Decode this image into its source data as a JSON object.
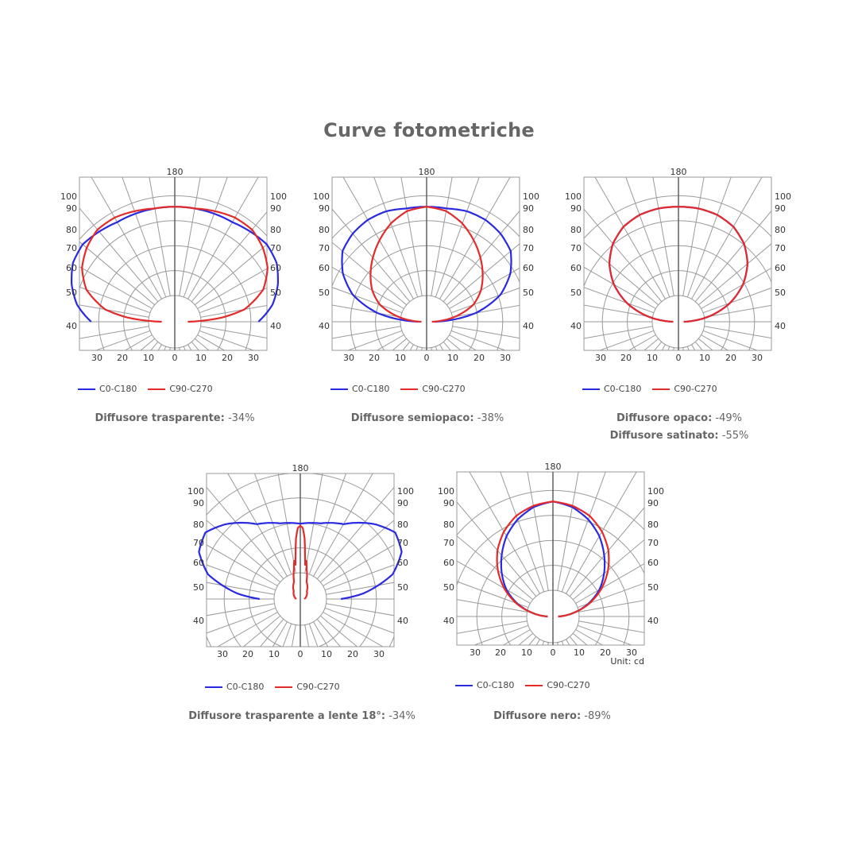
{
  "header": {
    "title": "Curve fotometriche"
  },
  "legend_labels": {
    "c0": "C0-C180",
    "c90": "C90-C270"
  },
  "colors": {
    "c0": "#2a2ae0",
    "c90": "#e32b2b",
    "grid": "#9a9a9a",
    "axis": "#555555"
  },
  "chart_data": [
    {
      "type": "polar",
      "top_label": "180",
      "side_labels": [
        "100",
        "90",
        "80",
        "70",
        "60",
        "50",
        "40"
      ],
      "bottom_labels": [
        "30",
        "20",
        "10",
        "0",
        "10",
        "20",
        "30"
      ],
      "unit": "",
      "series": [
        {
          "key": "c0",
          "name": "C0-C180",
          "profile": [
            [
              0,
              44
            ],
            [
              10,
              44
            ],
            [
              20,
              44
            ],
            [
              30,
              44
            ],
            [
              40,
              45
            ],
            [
              50,
              46
            ],
            [
              60,
              45
            ],
            [
              70,
              42
            ],
            [
              80,
              38
            ],
            [
              90,
              32
            ]
          ]
        },
        {
          "key": "c90",
          "name": "C90-C270",
          "profile": [
            [
              0,
              44
            ],
            [
              10,
              44
            ],
            [
              20,
              45
            ],
            [
              30,
              46
            ],
            [
              40,
              46
            ],
            [
              50,
              44
            ],
            [
              60,
              41
            ],
            [
              70,
              36
            ],
            [
              80,
              27
            ],
            [
              85,
              18
            ],
            [
              90,
              5
            ]
          ]
        }
      ],
      "caption": {
        "label": "Diffusore trasparente:",
        "value": " -34%"
      }
    },
    {
      "type": "polar",
      "top_label": "180",
      "side_labels": [
        "100",
        "90",
        "80",
        "70",
        "60",
        "50",
        "40"
      ],
      "bottom_labels": [
        "30",
        "20",
        "10",
        "0",
        "10",
        "20",
        "30"
      ],
      "unit": "",
      "series": [
        {
          "key": "c0",
          "name": "C0-C180",
          "profile": [
            [
              0,
              44
            ],
            [
              10,
              44
            ],
            [
              20,
              45
            ],
            [
              30,
              45
            ],
            [
              40,
              44
            ],
            [
              50,
              42
            ],
            [
              60,
              37
            ],
            [
              70,
              30
            ],
            [
              80,
              19
            ],
            [
              90,
              3
            ]
          ]
        },
        {
          "key": "c90",
          "name": "C90-C270",
          "profile": [
            [
              0,
              44
            ],
            [
              10,
              43
            ],
            [
              20,
              40
            ],
            [
              30,
              36
            ],
            [
              40,
              32
            ],
            [
              50,
              28
            ],
            [
              60,
              24
            ],
            [
              70,
              19
            ],
            [
              80,
              11
            ],
            [
              90,
              2
            ]
          ]
        }
      ],
      "caption": {
        "label": "Diffusore semiopaco:",
        "value": " -38%"
      }
    },
    {
      "type": "polar",
      "top_label": "180",
      "side_labels": [
        "100",
        "90",
        "80",
        "70",
        "60",
        "50",
        "40"
      ],
      "bottom_labels": [
        "30",
        "20",
        "10",
        "0",
        "10",
        "20",
        "30"
      ],
      "unit": "",
      "series": [
        {
          "key": "c0",
          "name": "C0-C180",
          "profile": [
            [
              0,
              44
            ],
            [
              10,
              44
            ],
            [
              20,
              43.5
            ],
            [
              30,
              42
            ],
            [
              40,
              39
            ],
            [
              50,
              34.5
            ],
            [
              60,
              28.5
            ],
            [
              70,
              21
            ],
            [
              80,
              12
            ],
            [
              90,
              2
            ]
          ]
        },
        {
          "key": "c90",
          "name": "C90-C270",
          "profile": [
            [
              0,
              44
            ],
            [
              10,
              44
            ],
            [
              20,
              43.5
            ],
            [
              30,
              42
            ],
            [
              40,
              39
            ],
            [
              50,
              34.5
            ],
            [
              60,
              28.5
            ],
            [
              70,
              21
            ],
            [
              80,
              12
            ],
            [
              90,
              2
            ]
          ]
        }
      ],
      "caption": {
        "label": "Diffusore opaco:",
        "value": " -49%",
        "label2": "Diffusore satinato:",
        "value2": " -55%"
      }
    },
    {
      "type": "polar",
      "top_label": "180",
      "side_labels": [
        "100",
        "90",
        "80",
        "70",
        "60",
        "50",
        "40"
      ],
      "bottom_labels": [
        "30",
        "20",
        "10",
        "0",
        "10",
        "20",
        "30"
      ],
      "unit": "",
      "series": [
        {
          "key": "c0",
          "name": "C0-C180",
          "profile": [
            [
              0,
              37
            ],
            [
              15,
              38.5
            ],
            [
              30,
              42.5
            ],
            [
              45,
              52
            ],
            [
              55,
              57
            ],
            [
              65,
              55
            ],
            [
              75,
              47
            ],
            [
              85,
              31
            ],
            [
              90,
              20
            ]
          ]
        },
        {
          "key": "c90",
          "name": "C90-C270",
          "profile": [
            [
              0,
              36
            ],
            [
              2,
              35
            ],
            [
              4,
              30
            ],
            [
              6,
              22
            ],
            [
              8,
              17
            ],
            [
              9,
              19
            ],
            [
              12,
              15
            ],
            [
              20,
              9
            ],
            [
              40,
              5
            ],
            [
              70,
              3
            ],
            [
              90,
              2
            ]
          ]
        }
      ],
      "caption": {
        "label": "Diffusore trasparente a lente 18°:",
        "value": " -34%"
      }
    },
    {
      "type": "polar",
      "top_label": "180",
      "side_labels": [
        "100",
        "90",
        "80",
        "70",
        "60",
        "50",
        "40"
      ],
      "bottom_labels": [
        "30",
        "20",
        "10",
        "0",
        "10",
        "20",
        "30"
      ],
      "unit": "Unit: cd",
      "series": [
        {
          "key": "c0",
          "name": "C0-C180",
          "profile": [
            [
              0,
              44
            ],
            [
              10,
              42.5
            ],
            [
              20,
              39.5
            ],
            [
              30,
              35.5
            ],
            [
              40,
              30.5
            ],
            [
              50,
              25.5
            ],
            [
              60,
              20.5
            ],
            [
              70,
              14.5
            ],
            [
              80,
              8
            ],
            [
              90,
              2
            ]
          ]
        },
        {
          "key": "c90",
          "name": "C90-C270",
          "profile": [
            [
              0,
              44
            ],
            [
              10,
              43
            ],
            [
              20,
              41
            ],
            [
              30,
              37.5
            ],
            [
              40,
              33
            ],
            [
              50,
              27.5
            ],
            [
              60,
              21.5
            ],
            [
              70,
              15
            ],
            [
              80,
              8
            ],
            [
              90,
              2
            ]
          ]
        }
      ],
      "caption": {
        "label": "Diffusore nero:",
        "value": " -89%"
      }
    }
  ]
}
